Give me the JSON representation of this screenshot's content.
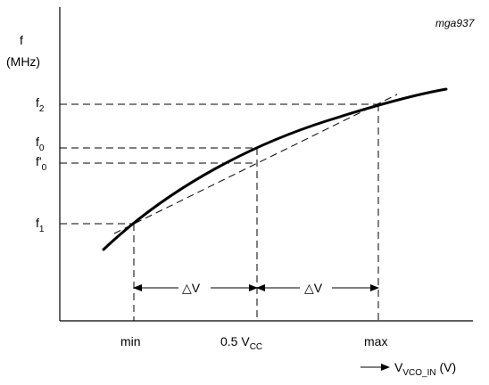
{
  "figure_id": "mga937",
  "y_axis": {
    "symbol": "f",
    "unit": "(MHz)"
  },
  "y_labels": {
    "f2": {
      "base": "f",
      "sub": "2"
    },
    "f0": {
      "base": "f",
      "sub": "0"
    },
    "f0_prime": {
      "base": "f'",
      "sub": "0"
    },
    "f1": {
      "base": "f",
      "sub": "1"
    }
  },
  "x_labels": {
    "min": "min",
    "mid": {
      "base": "0.5 V",
      "sub": "CC"
    },
    "max": "max"
  },
  "x_axis": {
    "base": "V",
    "sub": "VCO_IN",
    "unit": " (V)"
  },
  "delta_labels": [
    "△V",
    "△V"
  ]
}
